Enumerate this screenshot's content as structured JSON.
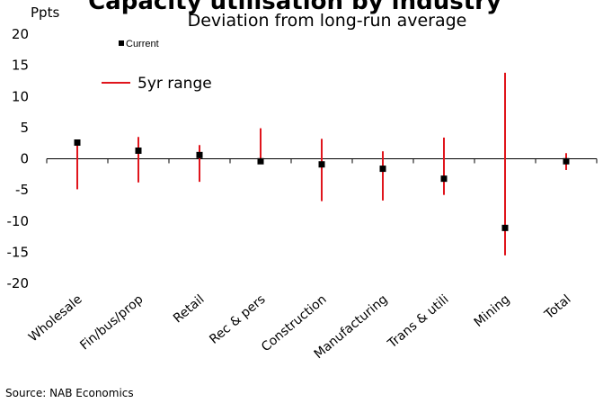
{
  "chart_data": {
    "type": "range-dot",
    "title": "Capacity utilisation by industry",
    "subtitle": "Deviation from long-run average",
    "y_unit_label": "Ppts",
    "ylim": [
      -20,
      20
    ],
    "yticks": [
      20,
      15,
      10,
      5,
      0,
      -5,
      -10,
      -15,
      -20
    ],
    "categories": [
      "Wholesale",
      "Fin/bus/prop",
      "Retail",
      "Rec & pers",
      "Construction",
      "Manufacturing",
      "Trans & utili",
      "Mining",
      "Total"
    ],
    "series": [
      {
        "name": "Current",
        "values": [
          2.6,
          1.3,
          0.6,
          -0.4,
          -0.9,
          -1.6,
          -3.2,
          -11.1,
          -0.4
        ]
      },
      {
        "name": "5yr range",
        "low": [
          -4.9,
          -3.8,
          -3.7,
          -0.4,
          -6.8,
          -6.7,
          -5.8,
          -15.5,
          -1.8
        ],
        "high": [
          2.6,
          3.5,
          2.2,
          4.9,
          3.2,
          1.2,
          3.4,
          13.8,
          0.9
        ]
      }
    ],
    "legend": {
      "position": "top-left"
    },
    "colors": {
      "current": "#000000",
      "range": "#e0151c"
    },
    "grid": false
  },
  "footer": {
    "source": "Source: NAB Economics"
  }
}
